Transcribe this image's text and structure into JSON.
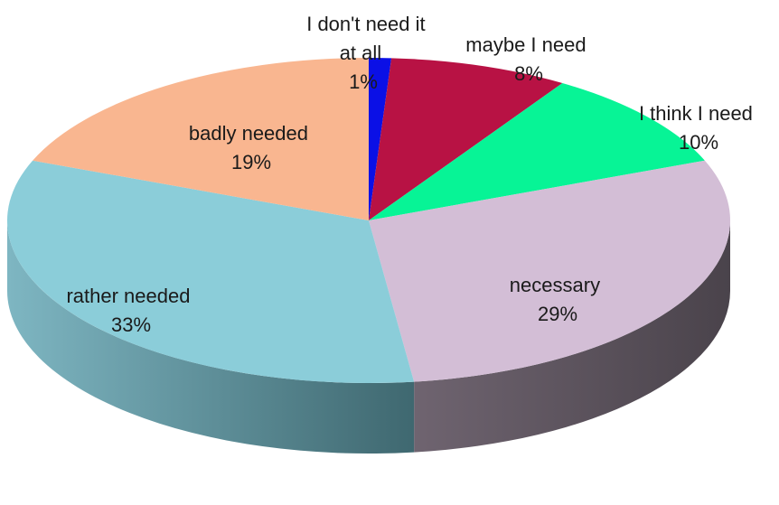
{
  "chart_data": {
    "type": "pie",
    "title": "",
    "legend": "none",
    "slices": [
      {
        "label_lines": [
          "I don't need it",
          "at all"
        ],
        "value_label": "1%",
        "value": 1,
        "color": "#0b10e6"
      },
      {
        "label_lines": [
          "maybe I need"
        ],
        "value_label": "8%",
        "value": 8,
        "color": "#b81244"
      },
      {
        "label_lines": [
          "I think I need"
        ],
        "value_label": "10%",
        "value": 10,
        "color": "#07f496"
      },
      {
        "label_lines": [
          "necessary"
        ],
        "value_label": "29%",
        "value": 29,
        "color": "#d3bed6"
      },
      {
        "label_lines": [
          "rather needed"
        ],
        "value_label": "33%",
        "value": 33,
        "color": "#8bcdd9"
      },
      {
        "label_lines": [
          "badly needed"
        ],
        "value_label": "19%",
        "value": 19,
        "color": "#f9b690"
      }
    ]
  }
}
